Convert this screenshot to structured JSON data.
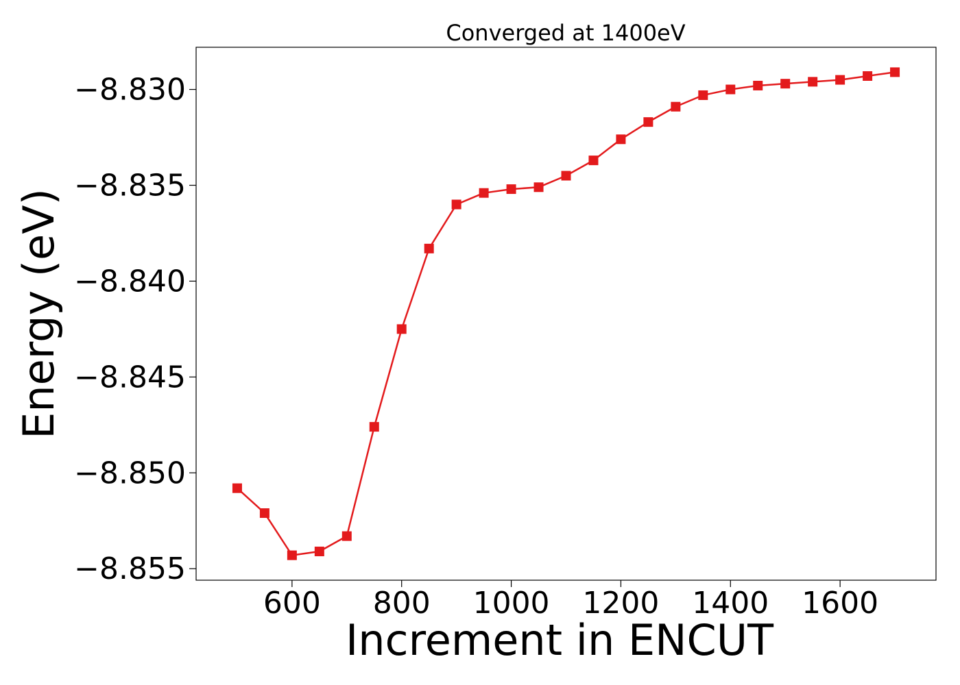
{
  "chart_data": {
    "type": "line",
    "title": "Converged at 1400eV",
    "xlabel": "Increment in ENCUT",
    "ylabel": "Energy (eV)",
    "xlim": [
      425,
      1775
    ],
    "ylim": [
      -8.8556,
      -8.8278
    ],
    "x_ticks": [
      600,
      800,
      1000,
      1200,
      1400,
      1600
    ],
    "x_tick_labels": [
      "600",
      "800",
      "1000",
      "1200",
      "1400",
      "1600"
    ],
    "y_ticks": [
      -8.83,
      -8.835,
      -8.84,
      -8.845,
      -8.85,
      -8.855
    ],
    "y_tick_labels": [
      "−8.830",
      "−8.835",
      "−8.840",
      "−8.845",
      "−8.850",
      "−8.855"
    ],
    "grid": false,
    "series": [
      {
        "color": "#e31a1c",
        "marker": "square",
        "x": [
          500,
          550,
          600,
          650,
          700,
          750,
          800,
          850,
          900,
          950,
          1000,
          1050,
          1100,
          1150,
          1200,
          1250,
          1300,
          1350,
          1400,
          1450,
          1500,
          1550,
          1600,
          1650,
          1700
        ],
        "y": [
          -8.8508,
          -8.8521,
          -8.8543,
          -8.8541,
          -8.8533,
          -8.8476,
          -8.8425,
          -8.8383,
          -8.836,
          -8.8354,
          -8.8352,
          -8.8351,
          -8.8345,
          -8.8337,
          -8.8326,
          -8.8317,
          -8.8309,
          -8.8303,
          -8.83,
          -8.8298,
          -8.8297,
          -8.8296,
          -8.8295,
          -8.8293,
          -8.8291
        ]
      }
    ]
  }
}
